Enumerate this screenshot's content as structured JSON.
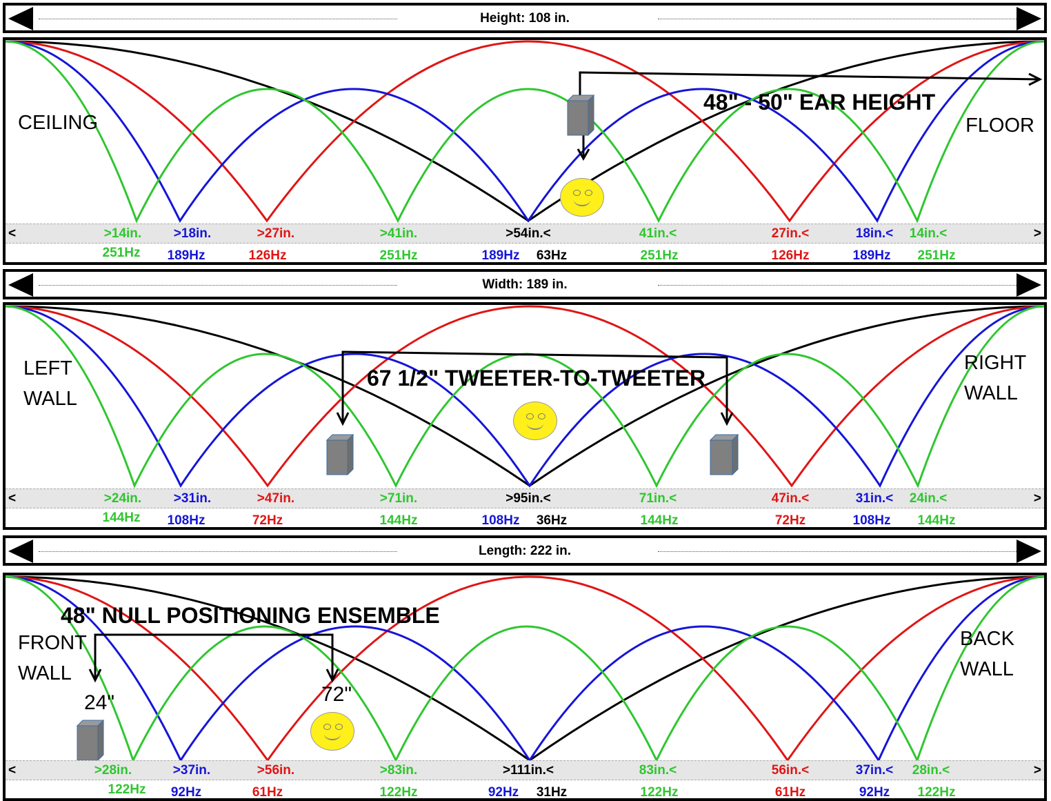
{
  "panels": [
    {
      "header": "Height: 108 in.",
      "left_wall": "CEILING",
      "right_wall": "FLOOR",
      "annotation": "48\" - 50\" EAR HEIGHT",
      "edge_left": "<",
      "edge_right": ">",
      "distances": [
        {
          "text": ">14in.",
          "color": "green"
        },
        {
          "text": ">18in.",
          "color": "blue"
        },
        {
          "text": ">27in.",
          "color": "red"
        },
        {
          "text": ">41in.",
          "color": "green"
        },
        {
          "text": ">54in.<",
          "color": "black"
        },
        {
          "text": "41in.<",
          "color": "green"
        },
        {
          "text": "27in.<",
          "color": "red"
        },
        {
          "text": "18in.<",
          "color": "blue"
        },
        {
          "text": "14in.<",
          "color": "green"
        }
      ],
      "frequencies": [
        {
          "text": "251Hz",
          "color": "green"
        },
        {
          "text": "189Hz",
          "color": "blue"
        },
        {
          "text": "126Hz",
          "color": "red"
        },
        {
          "text": "251Hz",
          "color": "green"
        },
        {
          "text": "189Hz",
          "color": "blue"
        },
        {
          "text": "63Hz",
          "color": "black"
        },
        {
          "text": "251Hz",
          "color": "green"
        },
        {
          "text": "126Hz",
          "color": "red"
        },
        {
          "text": "189Hz",
          "color": "blue"
        },
        {
          "text": "251Hz",
          "color": "green"
        }
      ]
    },
    {
      "header": "Width: 189 in.",
      "left_wall": "LEFT WALL",
      "right_wall": "RIGHT WALL",
      "annotation": "67 1/2\"  TWEETER-TO-TWEETER",
      "edge_left": "<",
      "edge_right": ">",
      "distances": [
        {
          "text": ">24in.",
          "color": "green"
        },
        {
          "text": ">31in.",
          "color": "blue"
        },
        {
          "text": ">47in.",
          "color": "red"
        },
        {
          "text": ">71in.",
          "color": "green"
        },
        {
          "text": ">95in.<",
          "color": "black"
        },
        {
          "text": "71in.<",
          "color": "green"
        },
        {
          "text": "47in.<",
          "color": "red"
        },
        {
          "text": "31in.<",
          "color": "blue"
        },
        {
          "text": "24in.<",
          "color": "green"
        }
      ],
      "frequencies": [
        {
          "text": "144Hz",
          "color": "green"
        },
        {
          "text": "108Hz",
          "color": "blue"
        },
        {
          "text": "72Hz",
          "color": "red"
        },
        {
          "text": "144Hz",
          "color": "green"
        },
        {
          "text": "108Hz",
          "color": "blue"
        },
        {
          "text": "36Hz",
          "color": "black"
        },
        {
          "text": "144Hz",
          "color": "green"
        },
        {
          "text": "72Hz",
          "color": "red"
        },
        {
          "text": "108Hz",
          "color": "blue"
        },
        {
          "text": "144Hz",
          "color": "green"
        }
      ]
    },
    {
      "header": "Length: 222 in.",
      "left_wall": "FRONT WALL",
      "right_wall": "BACK WALL",
      "annotation": "48\" NULL POSITIONING ENSEMBLE",
      "dim_left": "24\"",
      "dim_right": "72\"",
      "edge_left": "<",
      "edge_right": ">",
      "distances": [
        {
          "text": ">28in.",
          "color": "green"
        },
        {
          "text": ">37in.",
          "color": "blue"
        },
        {
          "text": ">56in.",
          "color": "red"
        },
        {
          "text": ">83in.",
          "color": "green"
        },
        {
          "text": ">111in.<",
          "color": "black"
        },
        {
          "text": "83in.<",
          "color": "green"
        },
        {
          "text": "56in.<",
          "color": "red"
        },
        {
          "text": "37in.<",
          "color": "blue"
        },
        {
          "text": "28in.<",
          "color": "green"
        }
      ],
      "frequencies": [
        {
          "text": "122Hz",
          "color": "green"
        },
        {
          "text": "92Hz",
          "color": "blue"
        },
        {
          "text": "61Hz",
          "color": "red"
        },
        {
          "text": "122Hz",
          "color": "green"
        },
        {
          "text": "92Hz",
          "color": "blue"
        },
        {
          "text": "31Hz",
          "color": "black"
        },
        {
          "text": "122Hz",
          "color": "green"
        },
        {
          "text": "61Hz",
          "color": "red"
        },
        {
          "text": "92Hz",
          "color": "blue"
        },
        {
          "text": "122Hz",
          "color": "green"
        }
      ]
    }
  ],
  "mode_colors": {
    "green": "#2fc62f",
    "blue": "#1515d8",
    "red": "#e01515",
    "black": "#000000"
  },
  "icons": [
    "speaker-icon",
    "smiley-face-icon",
    "arrow-left-icon",
    "arrow-right-icon"
  ]
}
